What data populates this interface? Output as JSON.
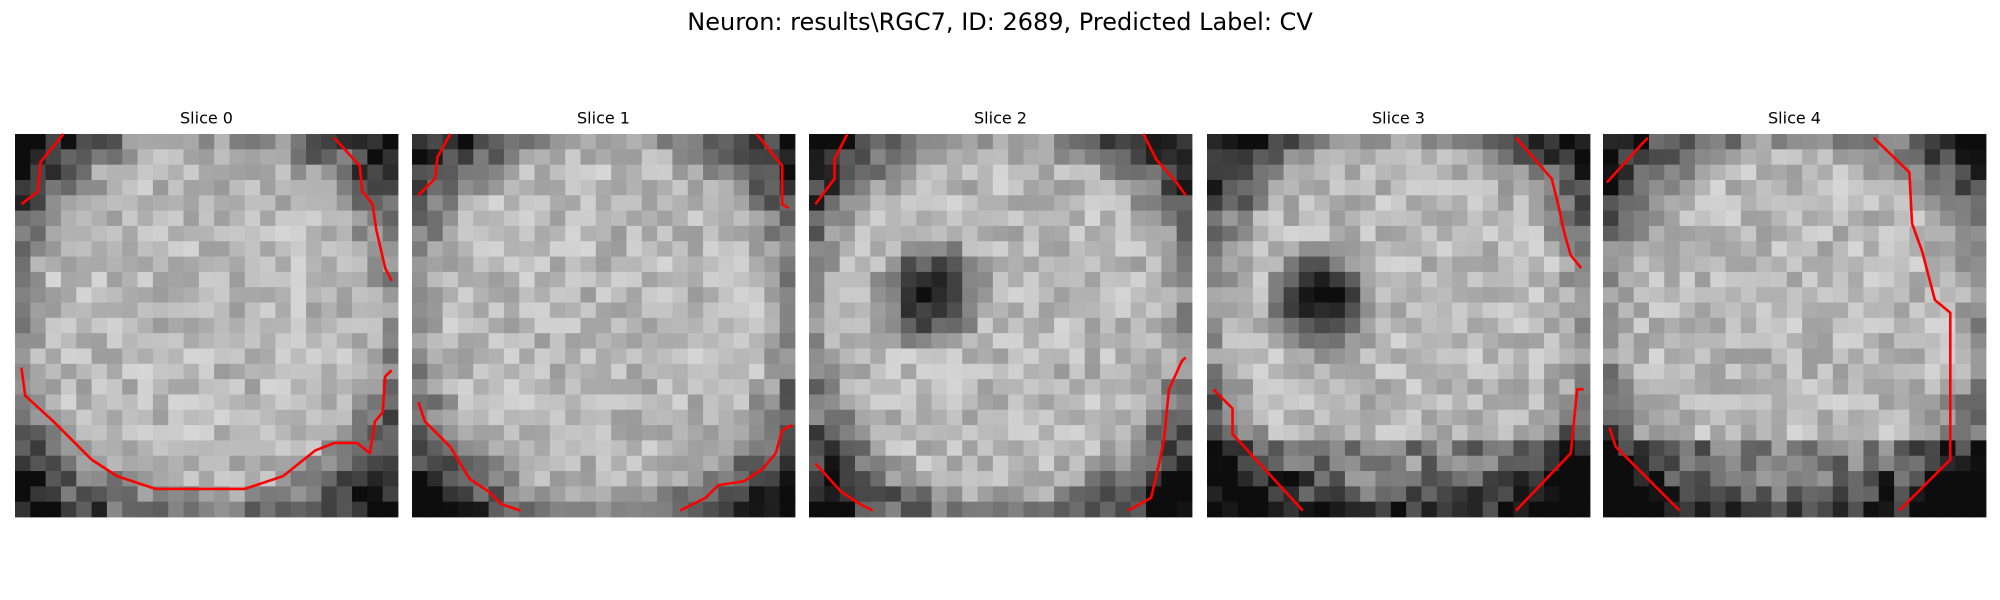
{
  "title": "Neuron: results\\RGC7, ID: 2689, Predicted Label: CV",
  "panels": [
    {
      "title": "Slice 0"
    },
    {
      "title": "Slice 1"
    },
    {
      "title": "Slice 2"
    },
    {
      "title": "Slice 3"
    },
    {
      "title": "Slice 4"
    }
  ]
}
